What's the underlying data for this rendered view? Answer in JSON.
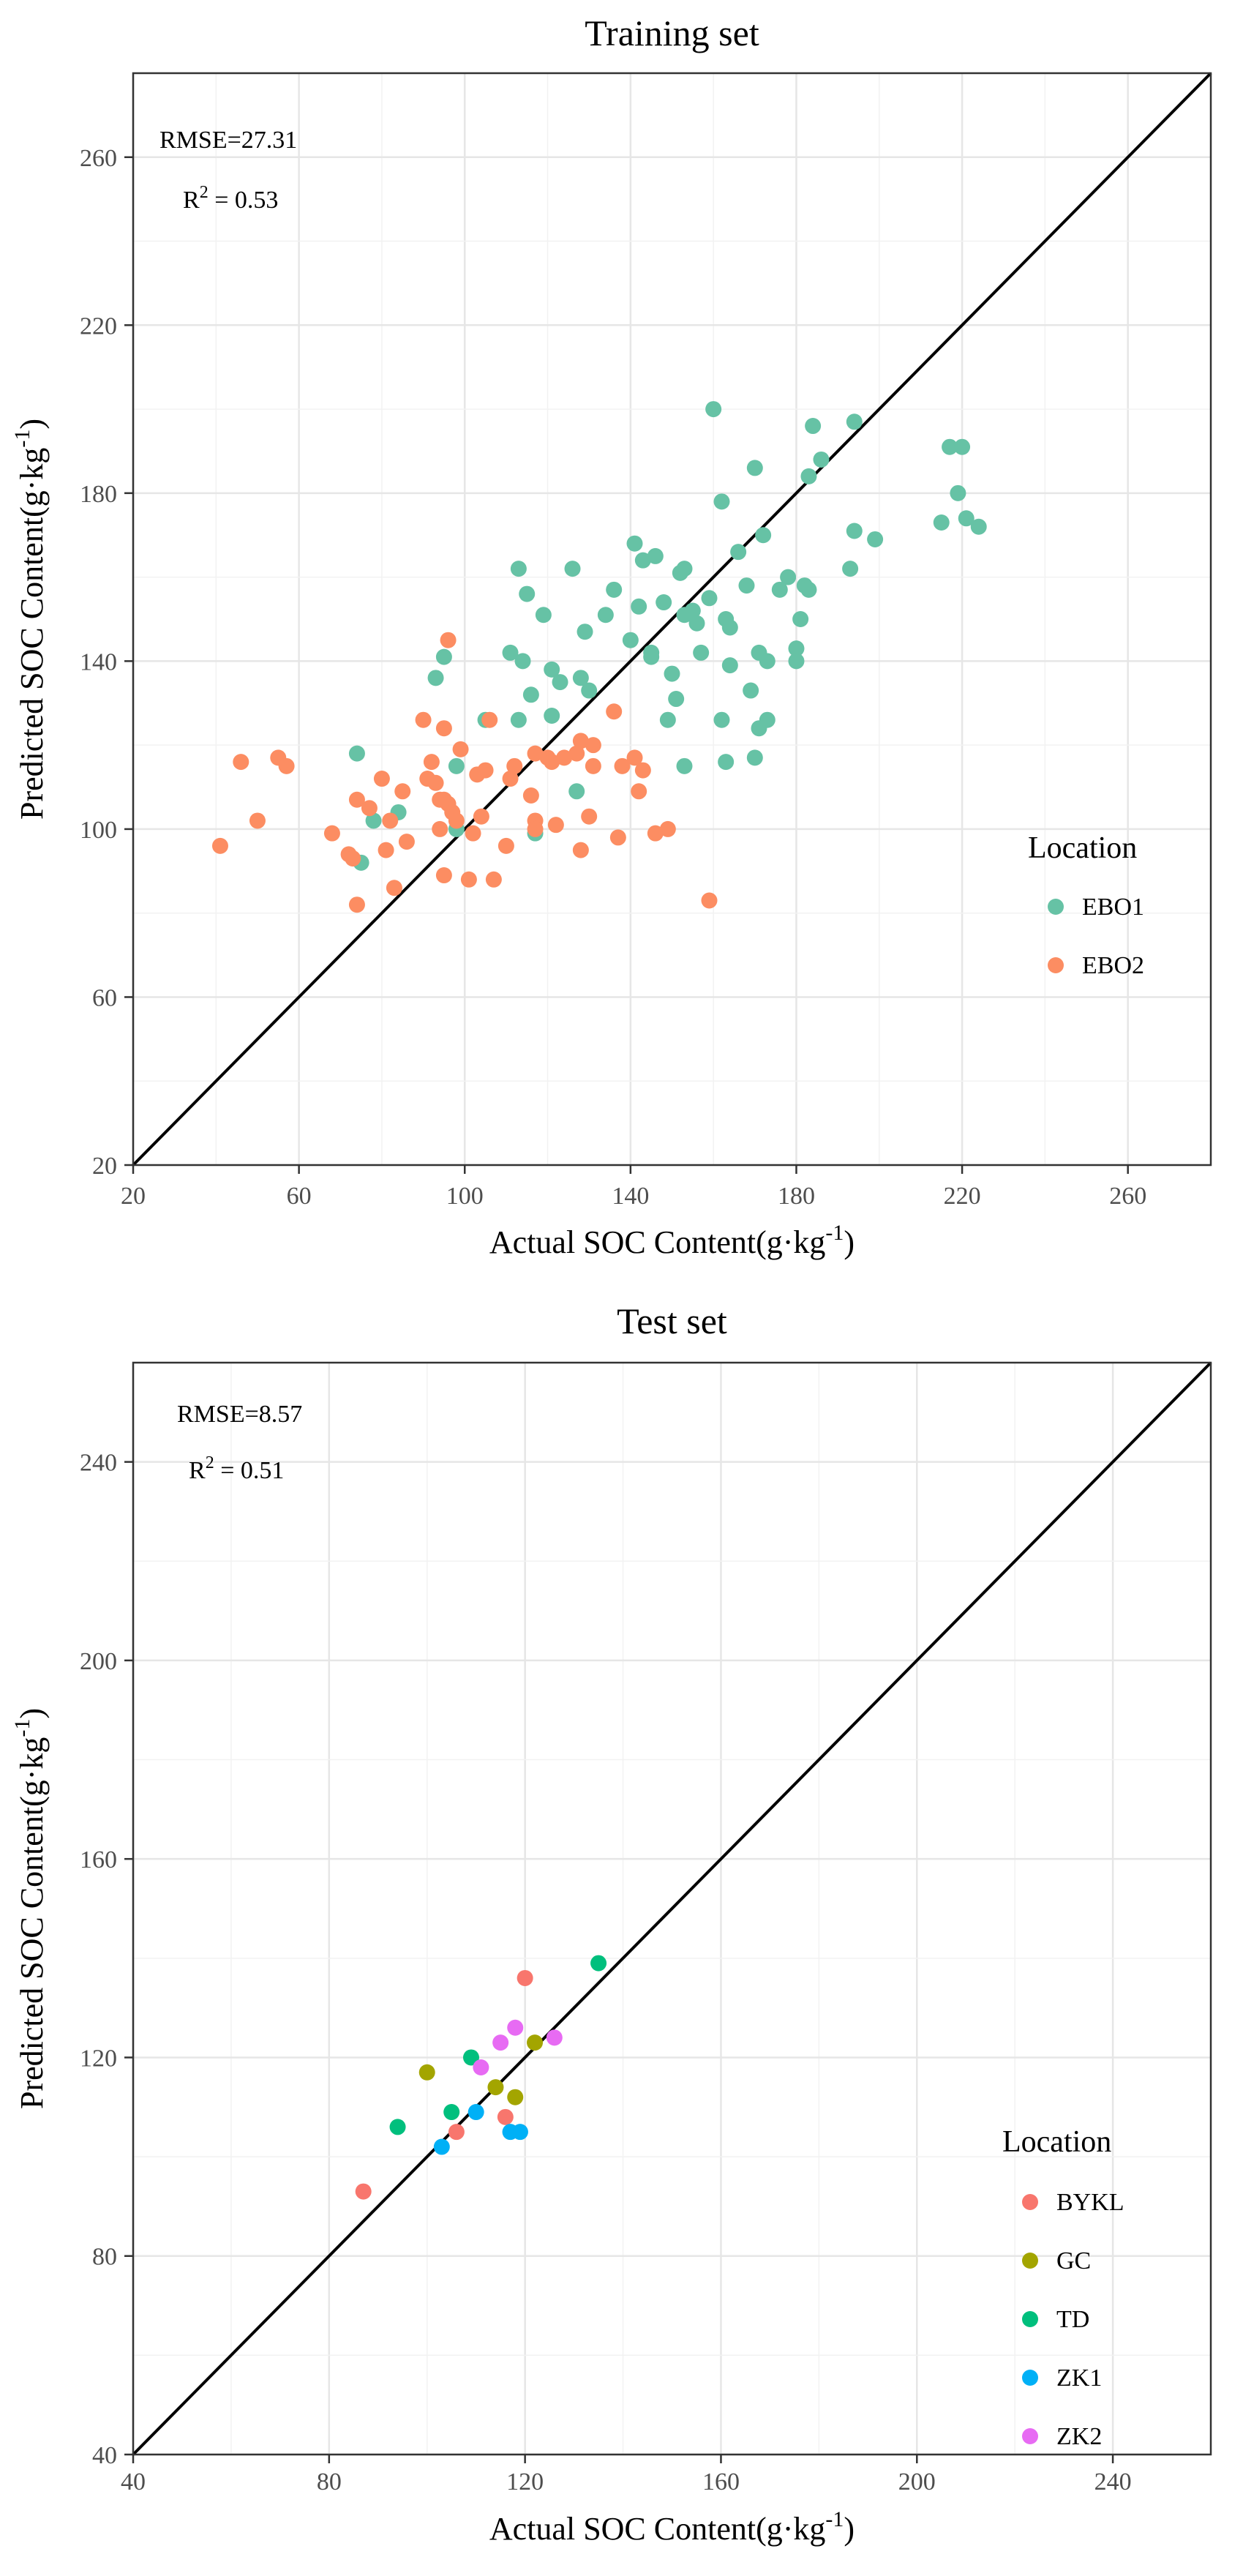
{
  "chart_data": [
    {
      "type": "scatter",
      "title": "Training set",
      "xlabel": "Actual SOC Content(g·kg",
      "ylabel": "Predicted SOC Content(g·kg",
      "label_superscript": "-1",
      "label_close": ")",
      "xlim": [
        20,
        280
      ],
      "ylim": [
        20,
        280
      ],
      "xticks": [
        20,
        60,
        100,
        140,
        180,
        220,
        260
      ],
      "yticks": [
        20,
        60,
        100,
        140,
        180,
        220,
        260
      ],
      "grid": true,
      "identity_line": true,
      "stats": {
        "rmse": "RMSE=27.31",
        "r2_prefix": "R",
        "r2_exp": "2",
        "r2_value": " = 0.53"
      },
      "legend": {
        "title": "Location",
        "position": "right"
      },
      "series": [
        {
          "name": "EBO1",
          "color": "#66C2A5",
          "points": [
            [
              74,
              118
            ],
            [
              75,
              92
            ],
            [
              78,
              102
            ],
            [
              84,
              104
            ],
            [
              93,
              136
            ],
            [
              95,
              141
            ],
            [
              98,
              115
            ],
            [
              98,
              100
            ],
            [
              105,
              126
            ],
            [
              111,
              142
            ],
            [
              113,
              162
            ],
            [
              114,
              140
            ],
            [
              115,
              156
            ],
            [
              113,
              126
            ],
            [
              116,
              132
            ],
            [
              117,
              99
            ],
            [
              119,
              151
            ],
            [
              121,
              138
            ],
            [
              121,
              127
            ],
            [
              123,
              135
            ],
            [
              126,
              162
            ],
            [
              127,
              109
            ],
            [
              128,
              136
            ],
            [
              129,
              147
            ],
            [
              130,
              133
            ],
            [
              134,
              151
            ],
            [
              136,
              157
            ],
            [
              140,
              145
            ],
            [
              141,
              168
            ],
            [
              142,
              153
            ],
            [
              143,
              164
            ],
            [
              145,
              142
            ],
            [
              145,
              141
            ],
            [
              146,
              165
            ],
            [
              148,
              154
            ],
            [
              149,
              126
            ],
            [
              150,
              137
            ],
            [
              151,
              131
            ],
            [
              152,
              161
            ],
            [
              153,
              162
            ],
            [
              153,
              151
            ],
            [
              153,
              115
            ],
            [
              155,
              152
            ],
            [
              156,
              149
            ],
            [
              157,
              142
            ],
            [
              159,
              155
            ],
            [
              160,
              200
            ],
            [
              162,
              126
            ],
            [
              162,
              178
            ],
            [
              163,
              116
            ],
            [
              163,
              150
            ],
            [
              164,
              148
            ],
            [
              164,
              139
            ],
            [
              166,
              166
            ],
            [
              168,
              158
            ],
            [
              169,
              133
            ],
            [
              170,
              117
            ],
            [
              170,
              186
            ],
            [
              171,
              124
            ],
            [
              171,
              142
            ],
            [
              172,
              170
            ],
            [
              173,
              140
            ],
            [
              173,
              126
            ],
            [
              176,
              157
            ],
            [
              178,
              160
            ],
            [
              180,
              143
            ],
            [
              180,
              140
            ],
            [
              181,
              150
            ],
            [
              182,
              158
            ],
            [
              183,
              157
            ],
            [
              183,
              184
            ],
            [
              184,
              196
            ],
            [
              186,
              188
            ],
            [
              193,
              162
            ],
            [
              194,
              171
            ],
            [
              194,
              197
            ],
            [
              199,
              169
            ],
            [
              215,
              173
            ],
            [
              217,
              191
            ],
            [
              219,
              180
            ],
            [
              220,
              191
            ],
            [
              221,
              174
            ],
            [
              224,
              172
            ]
          ]
        },
        {
          "name": "EBO2",
          "color": "#FC8D62",
          "points": [
            [
              41,
              96
            ],
            [
              46,
              116
            ],
            [
              50,
              102
            ],
            [
              55,
              117
            ],
            [
              57,
              115
            ],
            [
              68,
              99
            ],
            [
              72,
              94
            ],
            [
              73,
              93
            ],
            [
              74,
              82
            ],
            [
              74,
              107
            ],
            [
              77,
              105
            ],
            [
              80,
              112
            ],
            [
              81,
              95
            ],
            [
              82,
              102
            ],
            [
              83,
              86
            ],
            [
              85,
              109
            ],
            [
              86,
              97
            ],
            [
              90,
              126
            ],
            [
              91,
              112
            ],
            [
              92,
              116
            ],
            [
              93,
              111
            ],
            [
              94,
              107
            ],
            [
              94,
              100
            ],
            [
              95,
              124
            ],
            [
              95,
              107
            ],
            [
              95,
              89
            ],
            [
              96,
              145
            ],
            [
              96,
              106
            ],
            [
              97,
              104
            ],
            [
              98,
              102
            ],
            [
              99,
              119
            ],
            [
              101,
              88
            ],
            [
              102,
              99
            ],
            [
              103,
              113
            ],
            [
              104,
              103
            ],
            [
              105,
              114
            ],
            [
              106,
              126
            ],
            [
              107,
              88
            ],
            [
              110,
              96
            ],
            [
              111,
              112
            ],
            [
              112,
              115
            ],
            [
              116,
              108
            ],
            [
              117,
              118
            ],
            [
              117,
              102
            ],
            [
              117,
              100
            ],
            [
              120,
              117
            ],
            [
              121,
              116
            ],
            [
              122,
              101
            ],
            [
              124,
              117
            ],
            [
              127,
              118
            ],
            [
              128,
              95
            ],
            [
              128,
              121
            ],
            [
              130,
              103
            ],
            [
              131,
              115
            ],
            [
              131,
              120
            ],
            [
              136,
              128
            ],
            [
              137,
              98
            ],
            [
              138,
              115
            ],
            [
              141,
              117
            ],
            [
              142,
              109
            ],
            [
              143,
              114
            ],
            [
              146,
              99
            ],
            [
              149,
              100
            ],
            [
              159,
              83
            ]
          ]
        }
      ]
    },
    {
      "type": "scatter",
      "title": "Test set",
      "xlabel": "Actual SOC Content(g·kg",
      "ylabel": "Predicted SOC Content(g·kg",
      "label_superscript": "-1",
      "label_close": ")",
      "xlim": [
        40,
        260
      ],
      "ylim": [
        40,
        260
      ],
      "xticks": [
        40,
        80,
        120,
        160,
        200,
        240
      ],
      "yticks": [
        40,
        80,
        120,
        160,
        200,
        240
      ],
      "grid": true,
      "identity_line": true,
      "stats": {
        "rmse": "RMSE=8.57",
        "r2_prefix": "R",
        "r2_exp": "2",
        "r2_value": " = 0.51"
      },
      "legend": {
        "title": "Location",
        "position": "right"
      },
      "series": [
        {
          "name": "BYKL",
          "color": "#F8766D",
          "points": [
            [
              87,
              93
            ],
            [
              106,
              105
            ],
            [
              116,
              108
            ],
            [
              120,
              136
            ]
          ]
        },
        {
          "name": "GC",
          "color": "#A3A500",
          "points": [
            [
              100,
              117
            ],
            [
              114,
              114
            ],
            [
              118,
              112
            ],
            [
              122,
              123
            ]
          ]
        },
        {
          "name": "TD",
          "color": "#00BF7D",
          "points": [
            [
              94,
              106
            ],
            [
              105,
              109
            ],
            [
              109,
              120
            ],
            [
              135,
              139
            ]
          ]
        },
        {
          "name": "ZK1",
          "color": "#00B0F6",
          "points": [
            [
              103,
              102
            ],
            [
              110,
              109
            ],
            [
              117,
              105
            ],
            [
              119,
              105
            ]
          ]
        },
        {
          "name": "ZK2",
          "color": "#E76BF3",
          "points": [
            [
              111,
              118
            ],
            [
              115,
              123
            ],
            [
              118,
              126
            ],
            [
              126,
              124
            ]
          ]
        }
      ]
    }
  ]
}
